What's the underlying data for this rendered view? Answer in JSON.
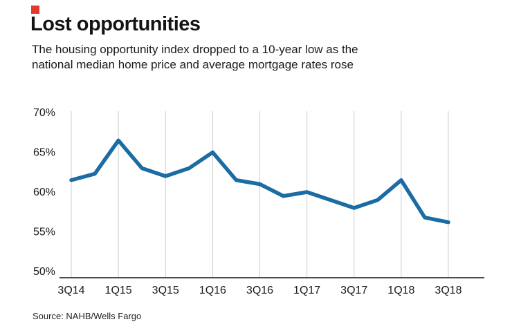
{
  "header": {
    "title": "Lost opportunities",
    "subtitle_line1": "The housing opportunity index dropped to a 10-year low as the",
    "subtitle_line2": "national median home price and average mortgage rates rose",
    "brand_color": "#e13b30"
  },
  "chart_data": {
    "type": "line",
    "title": "Lost opportunities",
    "x_categories": [
      "3Q14",
      "4Q14",
      "1Q15",
      "2Q15",
      "3Q15",
      "4Q15",
      "1Q16",
      "2Q16",
      "3Q16",
      "4Q16",
      "1Q17",
      "2Q17",
      "3Q17",
      "4Q17",
      "1Q18",
      "2Q18",
      "3Q18"
    ],
    "values": [
      61.5,
      62.3,
      66.5,
      63.0,
      62.0,
      63.0,
      65.0,
      61.5,
      61.0,
      59.5,
      60.0,
      59.0,
      58.0,
      59.0,
      61.5,
      56.8,
      56.2
    ],
    "x_tick_labels": [
      "3Q14",
      "1Q15",
      "3Q15",
      "1Q16",
      "3Q16",
      "1Q17",
      "3Q17",
      "1Q18",
      "3Q18"
    ],
    "y_ticks": [
      "70%",
      "65%",
      "60%",
      "55%",
      "50%"
    ],
    "y_tick_values": [
      70,
      65,
      60,
      55,
      50
    ],
    "ylim": [
      50,
      70
    ],
    "xlabel": "",
    "ylabel": "",
    "grid": "vertical",
    "legend": "none",
    "line_color": "#1b6ca3",
    "grid_color": "#cccccc",
    "axis_color": "#4d4d4d",
    "tick_text_color": "#1a1a1a"
  },
  "footer": {
    "source": "Source: NAHB/Wells Fargo"
  }
}
